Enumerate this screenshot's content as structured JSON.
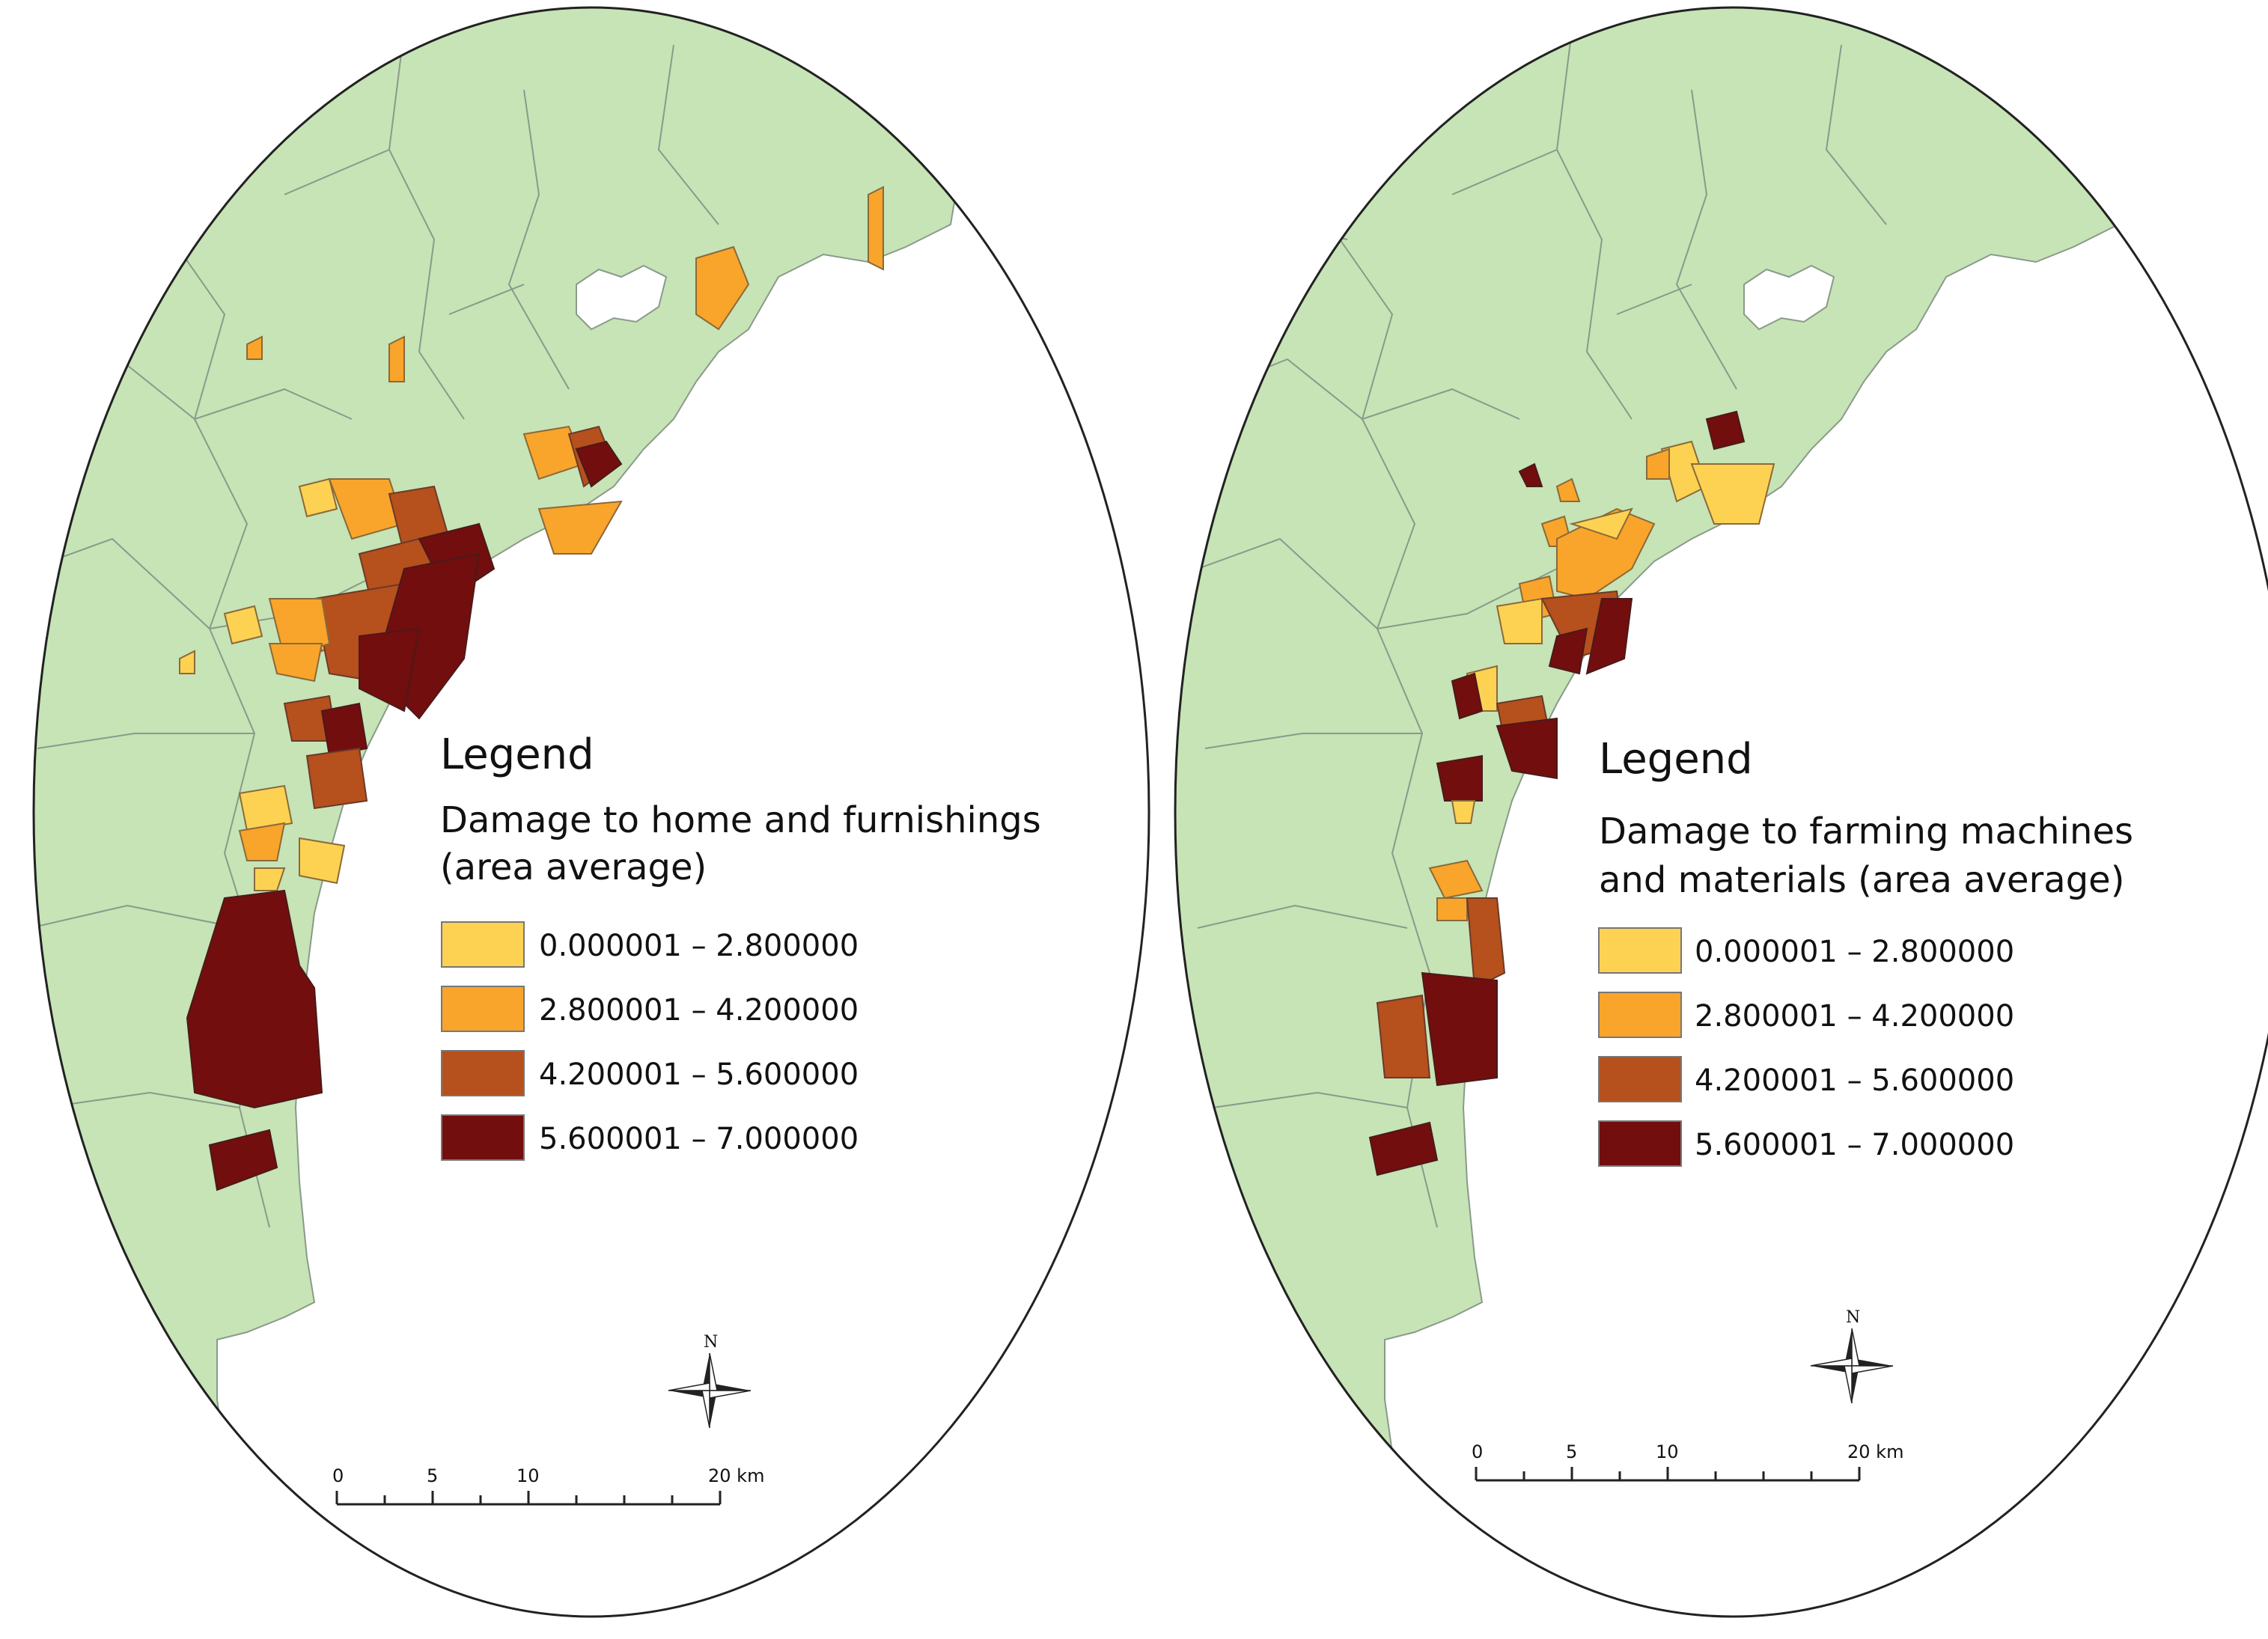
{
  "colors": {
    "land": "#c6e4b6",
    "land_border": "#8a9a8a",
    "water": "#ffffff",
    "class1": "#fdd253",
    "class2": "#f9a42b",
    "class3": "#b6501c",
    "class4": "#720e0e"
  },
  "maps": [
    {
      "id": "left",
      "legend_title": "Legend",
      "legend_subtitle_line1": "Damage to home and furnishings",
      "legend_subtitle_line2": "(area average)",
      "classes": [
        {
          "label": "0.000001 – 2.800000",
          "color": "#fdd253",
          "min": 1e-06,
          "max": 2.8
        },
        {
          "label": "2.800001 – 4.200000",
          "color": "#f9a42b",
          "min": 2.800001,
          "max": 4.2
        },
        {
          "label": "4.200001 – 5.600000",
          "color": "#b6501c",
          "min": 4.200001,
          "max": 5.6
        },
        {
          "label": "5.600001 – 7.000000",
          "color": "#720e0e",
          "min": 5.600001,
          "max": 7.0
        }
      ],
      "north_label": "N",
      "scale_labels": [
        "0",
        "5",
        "10",
        "20 km"
      ]
    },
    {
      "id": "right",
      "legend_title": "Legend",
      "legend_subtitle_line1": "Damage to farming machines",
      "legend_subtitle_line2": "and materials (area average)",
      "classes": [
        {
          "label": "0.000001 – 2.800000",
          "color": "#fdd253",
          "min": 1e-06,
          "max": 2.8
        },
        {
          "label": "2.800001 – 4.200000",
          "color": "#f9a42b",
          "min": 2.800001,
          "max": 4.2
        },
        {
          "label": "4.200001 – 5.600000",
          "color": "#b6501c",
          "min": 4.200001,
          "max": 5.6
        },
        {
          "label": "5.600001 – 7.000000",
          "color": "#720e0e",
          "min": 5.600001,
          "max": 7.0
        }
      ],
      "north_label": "N",
      "scale_labels": [
        "0",
        "5",
        "10",
        "20 km"
      ]
    }
  ]
}
